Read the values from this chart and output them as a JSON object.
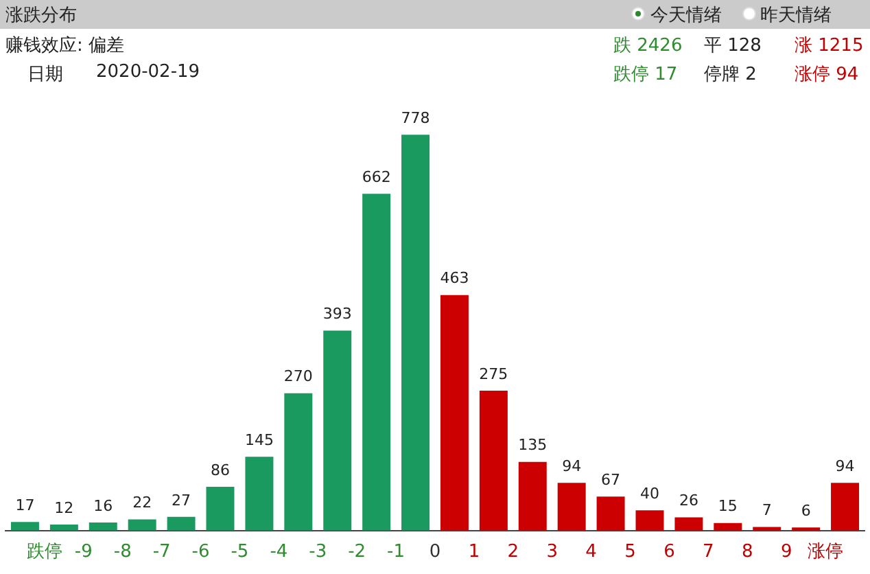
{
  "chart_data": {
    "type": "bar",
    "title": "涨跌分布",
    "x": [
      -10.5,
      -9.5,
      -8.5,
      -7.5,
      -6.5,
      -5.5,
      -4.5,
      -3.5,
      -2.5,
      -1.5,
      -0.5,
      0.5,
      1.5,
      2.5,
      3.5,
      4.5,
      5.5,
      6.5,
      7.5,
      8.5,
      9.5,
      10.5
    ],
    "values": [
      17,
      12,
      16,
      22,
      27,
      86,
      145,
      270,
      393,
      662,
      778,
      463,
      275,
      135,
      94,
      67,
      40,
      26,
      15,
      7,
      6,
      94
    ],
    "colors": [
      "#1a9a5f",
      "#1a9a5f",
      "#1a9a5f",
      "#1a9a5f",
      "#1a9a5f",
      "#1a9a5f",
      "#1a9a5f",
      "#1a9a5f",
      "#1a9a5f",
      "#1a9a5f",
      "#1a9a5f",
      "#cc0000",
      "#cc0000",
      "#cc0000",
      "#cc0000",
      "#cc0000",
      "#cc0000",
      "#cc0000",
      "#cc0000",
      "#cc0000",
      "#cc0000",
      "#cc0000"
    ],
    "xlim": [
      -11,
      11
    ],
    "xticks": [
      {
        "value": -10,
        "label": "跌停"
      },
      -9,
      -8,
      -7,
      -6,
      -5,
      -4,
      -3,
      -2,
      -1,
      0,
      1,
      2,
      3,
      4,
      5,
      6,
      7,
      8,
      9,
      {
        "value": 10,
        "label": "涨停"
      }
    ],
    "data_labels": true,
    "tick_labels": "x",
    "grid": false,
    "legend": false,
    "annotations": [
      "今天情绪",
      "昨天情绪",
      "赚钱效应: 偏差",
      "日期",
      "2020-02-19",
      "跌 2426",
      "平 128",
      "涨 1215",
      "跌停 17",
      "停牌 2",
      "涨停 94"
    ]
  }
}
